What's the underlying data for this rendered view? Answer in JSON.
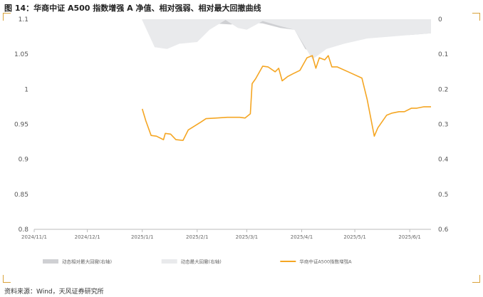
{
  "title": "图 14：华商中证 A500 指数增强 A 净值、相对强弱、相对最大回撤曲线",
  "source": "资料来源：Wind，天风证券研究所",
  "chart_data": {
    "type": "line",
    "y_left": {
      "min": 0.8,
      "max": 1.1,
      "ticks": [
        "1.1",
        "1.05",
        "1",
        "0.95",
        "0.9",
        "0.85",
        "0.8"
      ]
    },
    "y_right": {
      "min": 0,
      "max": 0.6,
      "inverted": true,
      "ticks": [
        "0",
        "0.1",
        "0.2",
        "0.3",
        "0.4",
        "0.5",
        "0.6"
      ]
    },
    "x_range": [
      "2024-11-01",
      "2025-06-13"
    ],
    "x_ticks": [
      "2024/11/1",
      "2024/12/1",
      "2025/1/1",
      "2025/2/1",
      "2025/3/1",
      "2025/4/1",
      "2025/5/1",
      "2025/6/1"
    ],
    "x_tick_dates": [
      "2024-11-01",
      "2024-12-01",
      "2025-01-01",
      "2025-02-01",
      "2025-03-01",
      "2025-04-01",
      "2025-05-01",
      "2025-06-01"
    ],
    "series": [
      {
        "name": "动态相对最大回撤(右轴)",
        "axis": "right",
        "kind": "area",
        "color": "#cfd0d3",
        "points": [
          [
            "2025-01-01",
            0.003
          ],
          [
            "2025-01-10",
            0.025
          ],
          [
            "2025-01-20",
            0.025
          ],
          [
            "2025-02-01",
            0.022
          ],
          [
            "2025-02-10",
            0.012
          ],
          [
            "2025-02-20",
            0.015
          ],
          [
            "2025-03-01",
            0.008
          ],
          [
            "2025-03-10",
            0.012
          ],
          [
            "2025-03-20",
            0.025
          ],
          [
            "2025-03-28",
            0.03
          ],
          [
            "2025-04-03",
            0.085
          ],
          [
            "2025-04-07",
            0.095
          ],
          [
            "2025-04-10",
            0.06
          ],
          [
            "2025-04-20",
            0.045
          ],
          [
            "2025-05-01",
            0.045
          ],
          [
            "2025-05-15",
            0.045
          ],
          [
            "2025-06-01",
            0.045
          ],
          [
            "2025-06-13",
            0.04
          ]
        ]
      },
      {
        "name": "动态最大回撤(右轴)",
        "axis": "right",
        "kind": "area",
        "color": "#e9eaec",
        "points": [
          [
            "2025-01-01",
            0.003
          ],
          [
            "2025-01-08",
            0.08
          ],
          [
            "2025-01-15",
            0.085
          ],
          [
            "2025-01-22",
            0.07
          ],
          [
            "2025-02-01",
            0.065
          ],
          [
            "2025-02-08",
            0.03
          ],
          [
            "2025-02-17",
            0.002
          ],
          [
            "2025-02-24",
            0.025
          ],
          [
            "2025-03-01",
            0.03
          ],
          [
            "2025-03-10",
            0.005
          ],
          [
            "2025-03-20",
            0.02
          ],
          [
            "2025-03-28",
            0.03
          ],
          [
            "2025-04-03",
            0.08
          ],
          [
            "2025-04-07",
            0.115
          ],
          [
            "2025-04-15",
            0.085
          ],
          [
            "2025-04-25",
            0.07
          ],
          [
            "2025-05-08",
            0.055
          ],
          [
            "2025-05-20",
            0.05
          ],
          [
            "2025-06-01",
            0.045
          ],
          [
            "2025-06-13",
            0.04
          ]
        ]
      },
      {
        "name": "华商中证A500指数增强A",
        "axis": "left",
        "kind": "line",
        "color": "#f5a623",
        "points": [
          [
            "2025-01-01",
            0.972
          ],
          [
            "2025-01-03",
            0.955
          ],
          [
            "2025-01-06",
            0.934
          ],
          [
            "2025-01-09",
            0.933
          ],
          [
            "2025-01-13",
            0.928
          ],
          [
            "2025-01-14",
            0.937
          ],
          [
            "2025-01-17",
            0.936
          ],
          [
            "2025-01-20",
            0.928
          ],
          [
            "2025-01-24",
            0.927
          ],
          [
            "2025-01-27",
            0.942
          ],
          [
            "2025-02-03",
            0.953
          ],
          [
            "2025-02-06",
            0.958
          ],
          [
            "2025-02-12",
            0.959
          ],
          [
            "2025-02-18",
            0.96
          ],
          [
            "2025-02-25",
            0.96
          ],
          [
            "2025-02-28",
            0.959
          ],
          [
            "2025-03-03",
            0.965
          ],
          [
            "2025-03-04",
            1.008
          ],
          [
            "2025-03-06",
            1.015
          ],
          [
            "2025-03-10",
            1.033
          ],
          [
            "2025-03-13",
            1.032
          ],
          [
            "2025-03-17",
            1.025
          ],
          [
            "2025-03-19",
            1.03
          ],
          [
            "2025-03-21",
            1.012
          ],
          [
            "2025-03-24",
            1.018
          ],
          [
            "2025-03-27",
            1.022
          ],
          [
            "2025-03-31",
            1.027
          ],
          [
            "2025-04-02",
            1.036
          ],
          [
            "2025-04-04",
            1.045
          ],
          [
            "2025-04-07",
            1.048
          ],
          [
            "2025-04-09",
            1.03
          ],
          [
            "2025-04-11",
            1.045
          ],
          [
            "2025-04-14",
            1.042
          ],
          [
            "2025-04-16",
            1.048
          ],
          [
            "2025-04-18",
            1.032
          ],
          [
            "2025-04-21",
            1.032
          ],
          [
            "2025-04-28",
            1.024
          ],
          [
            "2025-05-05",
            1.016
          ],
          [
            "2025-05-08",
            0.985
          ],
          [
            "2025-05-12",
            0.933
          ],
          [
            "2025-05-14",
            0.945
          ],
          [
            "2025-05-19",
            0.963
          ],
          [
            "2025-05-22",
            0.966
          ],
          [
            "2025-05-26",
            0.968
          ],
          [
            "2025-05-29",
            0.968
          ],
          [
            "2025-06-02",
            0.973
          ],
          [
            "2025-06-05",
            0.973
          ],
          [
            "2025-06-09",
            0.975
          ],
          [
            "2025-06-13",
            0.975
          ]
        ]
      }
    ],
    "legend_position": "bottom"
  }
}
